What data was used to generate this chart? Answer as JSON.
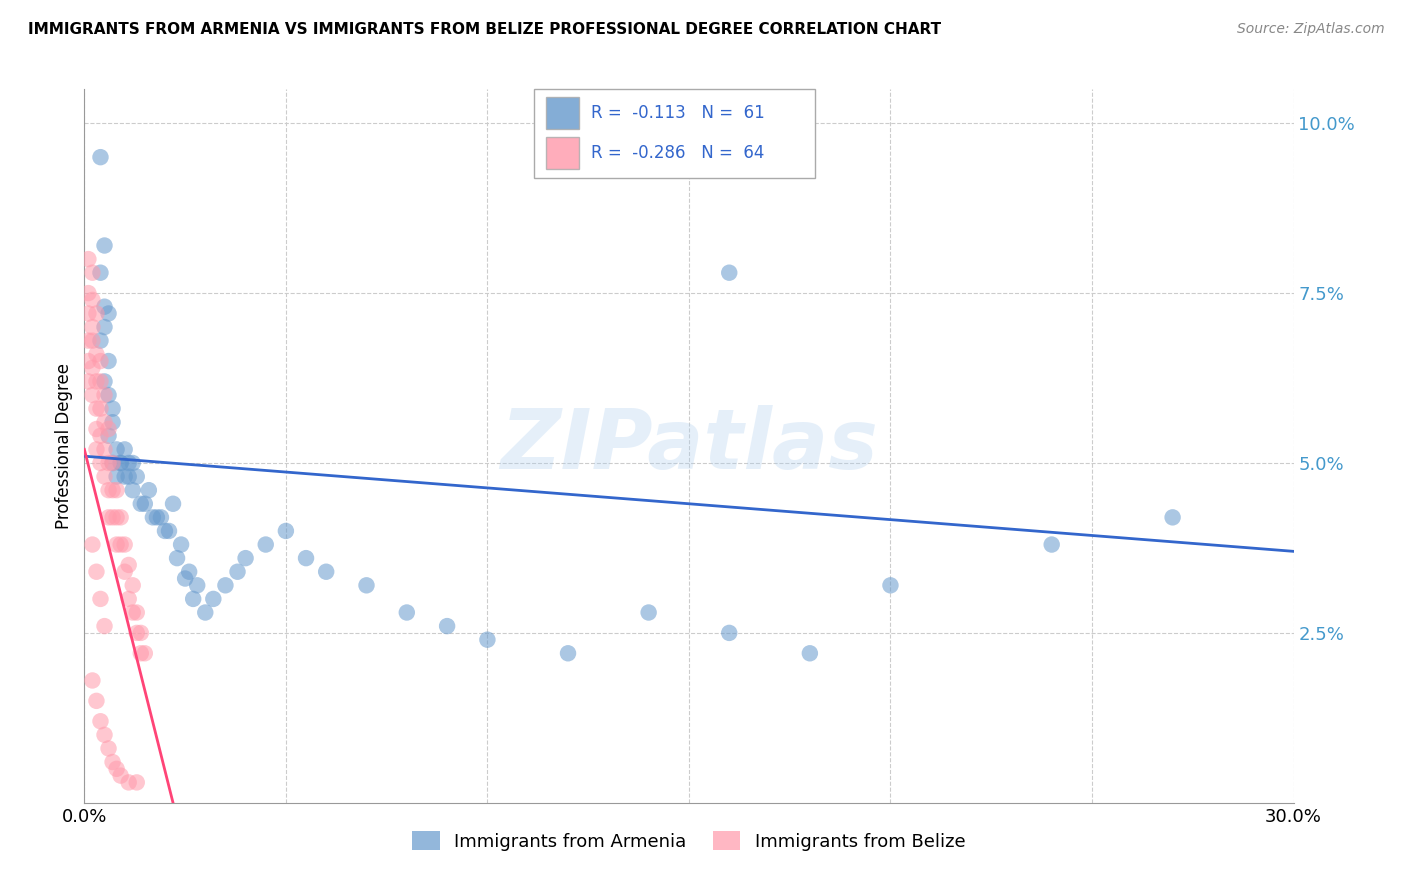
{
  "title": "IMMIGRANTS FROM ARMENIA VS IMMIGRANTS FROM BELIZE PROFESSIONAL DEGREE CORRELATION CHART",
  "source": "Source: ZipAtlas.com",
  "ylabel": "Professional Degree",
  "xlim": [
    0.0,
    0.3
  ],
  "ylim": [
    0.0,
    0.105
  ],
  "yticks": [
    0.0,
    0.025,
    0.05,
    0.075,
    0.1
  ],
  "ytick_labels": [
    "",
    "2.5%",
    "5.0%",
    "7.5%",
    "10.0%"
  ],
  "legend_r_armenia": "-0.113",
  "legend_n_armenia": "61",
  "legend_r_belize": "-0.286",
  "legend_n_belize": "64",
  "legend_label_armenia": "Immigrants from Armenia",
  "legend_label_belize": "Immigrants from Belize",
  "color_armenia": "#6699CC",
  "color_belize": "#FF99AA",
  "color_trendline_armenia": "#3366CC",
  "color_trendline_belize": "#FF4477",
  "watermark": "ZIPatlas",
  "arm_trend_x": [
    0.0,
    0.3
  ],
  "arm_trend_y": [
    0.051,
    0.037
  ],
  "bel_trend_x": [
    0.0,
    0.022
  ],
  "bel_trend_y": [
    0.052,
    0.0
  ]
}
